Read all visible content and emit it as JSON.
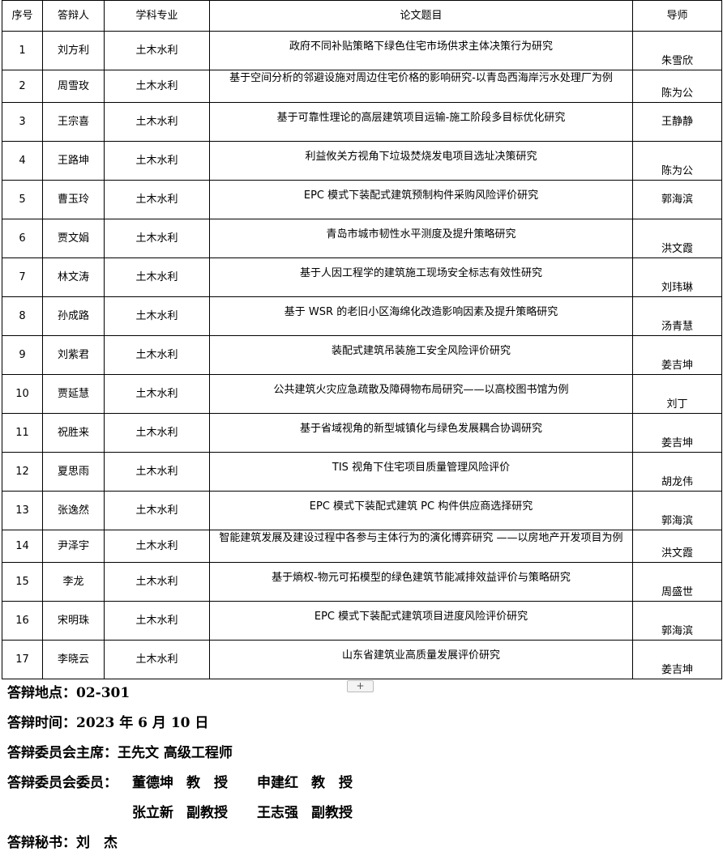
{
  "table": {
    "headers": [
      "序号",
      "答辩人",
      "学科专业",
      "论文题目",
      "导师"
    ],
    "rows": [
      [
        "1",
        "刘方利",
        "土木水利",
        "政府不同补贴策略下绿色住宅市场供求主体决策行为研究",
        "朱雪欣"
      ],
      [
        "2",
        "周雪玫",
        "土木水利",
        "基于空间分析的邻避设施对周边住宅价格的影响研究-以青岛西海岸污水处理厂为例",
        "陈为公"
      ],
      [
        "3",
        "王宗喜",
        "土木水利",
        "基于可靠性理论的高层建筑项目运输-施工阶段多目标优化研究",
        "王静静"
      ],
      [
        "4",
        "王路坤",
        "土木水利",
        "利益攸关方视角下垃圾焚烧发电项目选址决策研究",
        "陈为公"
      ],
      [
        "5",
        "曹玉玲",
        "土木水利",
        "EPC 模式下装配式建筑预制构件采购风险评价研究",
        "郭海滨"
      ],
      [
        "6",
        "贾文娟",
        "土木水利",
        "青岛市城市韧性水平测度及提升策略研究",
        "洪文霞"
      ],
      [
        "7",
        "林文涛",
        "土木水利",
        "基于人因工程学的建筑施工现场安全标志有效性研究",
        "刘玮琳"
      ],
      [
        "8",
        "孙成路",
        "土木水利",
        "基于 WSR 的老旧小区海绵化改造影响因素及提升策略研究",
        "汤青慧"
      ],
      [
        "9",
        "刘紫君",
        "土木水利",
        "装配式建筑吊装施工安全风险评价研究",
        "姜吉坤"
      ],
      [
        "10",
        "贾延慧",
        "土木水利",
        "公共建筑火灾应急疏散及障碍物布局研究——以高校图书馆为例",
        "刘丁"
      ],
      [
        "11",
        "祝胜来",
        "土木水利",
        "基于省域视角的新型城镇化与绿色发展耦合协调研究",
        "姜吉坤"
      ],
      [
        "12",
        "夏思雨",
        "土木水利",
        "TIS 视角下住宅项目质量管理风险评价",
        "胡龙伟"
      ],
      [
        "13",
        "张逸然",
        "土木水利",
        "EPC 模式下装配式建筑 PC 构件供应商选择研究",
        "郭海滨"
      ],
      [
        "14",
        "尹泽宇",
        "土木水利",
        "智能建筑发展及建设过程中各参与主体行为的演化博弈研究 ——以房地产开发项目为例",
        "洪文霞"
      ],
      [
        "15",
        "李龙",
        "土木水利",
        "基于熵权-物元可拓模型的绿色建筑节能减排效益评价与策略研究",
        "周盛世"
      ],
      [
        "16",
        "宋明珠",
        "土木水利",
        "EPC 模式下装配式建筑项目进度风险评价研究",
        "郭海滨"
      ],
      [
        "17",
        "李晓云",
        "土木水利",
        "山东省建筑业高质量发展评价研究",
        "姜吉坤"
      ]
    ]
  },
  "add_row_label": "+",
  "footer": {
    "location": "答辩地点：02-301",
    "time": "答辩时间：2023 年 6 月 10 日",
    "chair": "答辩委员会主席：王先文 高级工程师",
    "members_label": "答辩委员会委员：",
    "members": [
      {
        "name": "董德坤",
        "title": "教　授"
      },
      {
        "name": "申建红",
        "title": "教　授"
      },
      {
        "name": "张立新",
        "title": "副教授"
      },
      {
        "name": "王志强",
        "title": "副教授"
      }
    ],
    "secretary": "答辩秘书：刘　杰"
  }
}
